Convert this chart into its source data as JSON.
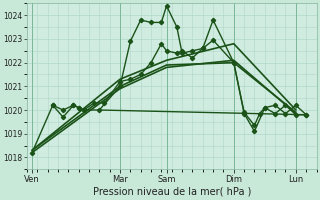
{
  "xlabel": "Pression niveau de la mer( hPa )",
  "background_color": "#c8e8d8",
  "plot_bg_color": "#d0ece0",
  "grid_color": "#b0d8c8",
  "line_color": "#1a5218",
  "ylim": [
    1017.5,
    1024.5
  ],
  "yticks": [
    1018,
    1019,
    1020,
    1021,
    1022,
    1023,
    1024
  ],
  "xlim": [
    0,
    28
  ],
  "x_day_labels": [
    "Ven",
    "Mar",
    "Sam",
    "Dim",
    "Lun"
  ],
  "x_day_positions": [
    0.5,
    9,
    13.5,
    20,
    26
  ],
  "x_vline_positions": [
    0.5,
    9,
    13.5,
    20,
    26
  ],
  "series_markers": [
    {
      "x": [
        0.5,
        2.5,
        3.5,
        4.5,
        5,
        5.5,
        7,
        9,
        10,
        11,
        12,
        13,
        13.5,
        14.5,
        15,
        16,
        17,
        18,
        20,
        21,
        22,
        22.5,
        23,
        24,
        25,
        26,
        27
      ],
      "y": [
        1018.2,
        1020.2,
        1019.7,
        1020.2,
        1020.1,
        1020.0,
        1020.0,
        1021.0,
        1022.9,
        1023.8,
        1023.7,
        1023.7,
        1024.4,
        1023.5,
        1022.4,
        1022.5,
        1022.6,
        1023.8,
        1022.0,
        1019.9,
        1019.35,
        1019.85,
        1020.1,
        1019.85,
        1020.2,
        1019.8,
        1019.8
      ],
      "linewidth": 1.0,
      "markersize": 2.2
    },
    {
      "x": [
        2.5,
        3.5,
        4.5,
        5,
        5.5,
        6.5,
        7.5,
        9,
        10,
        11,
        12,
        13,
        13.5,
        14.5,
        15,
        16,
        17,
        18,
        20,
        21,
        22,
        23,
        24,
        25,
        26,
        27
      ],
      "y": [
        1020.2,
        1020.0,
        1020.2,
        1020.1,
        1020.0,
        1020.3,
        1020.3,
        1021.2,
        1021.3,
        1021.5,
        1022.0,
        1022.8,
        1022.5,
        1022.4,
        1022.5,
        1022.2,
        1022.6,
        1022.95,
        1022.0,
        1019.85,
        1019.1,
        1020.1,
        1020.2,
        1019.85,
        1020.2,
        1019.8
      ],
      "linewidth": 1.0,
      "markersize": 2.2
    }
  ],
  "series_smooth": [
    {
      "x": [
        0.5,
        9,
        13.5,
        20,
        26
      ],
      "y": [
        1018.3,
        1021.3,
        1022.1,
        1022.8,
        1020.0
      ],
      "linewidth": 1.2
    },
    {
      "x": [
        0.5,
        9,
        13.5,
        20,
        26
      ],
      "y": [
        1018.3,
        1021.0,
        1021.9,
        1022.0,
        1019.9
      ],
      "linewidth": 1.2
    },
    {
      "x": [
        0.5,
        9,
        13.5,
        20,
        26
      ],
      "y": [
        1018.2,
        1020.9,
        1021.8,
        1022.1,
        1019.85
      ],
      "linewidth": 1.2
    }
  ],
  "flat_line": {
    "x": [
      7,
      27
    ],
    "y": [
      1020.0,
      1019.8
    ],
    "linewidth": 1.0
  }
}
